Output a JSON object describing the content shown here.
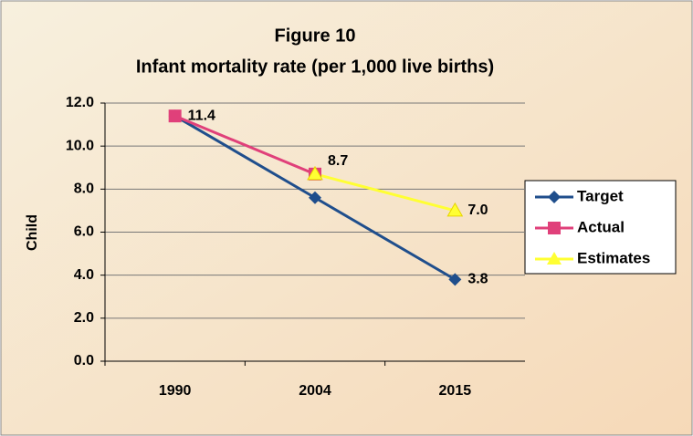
{
  "chart_data": {
    "type": "line",
    "title": "Figure 10",
    "subtitle": "Infant mortality rate (per 1,000 live births)",
    "y_label": "Child",
    "categories": [
      "1990",
      "2004",
      "2015"
    ],
    "series": [
      {
        "name": "Target",
        "color": "#1f4e8c",
        "marker": "diamond",
        "values": [
          11.4,
          7.6,
          3.8
        ],
        "value_labels": [
          null,
          null,
          "3.8"
        ]
      },
      {
        "name": "Actual",
        "color": "#e0407a",
        "marker": "square",
        "values": [
          11.4,
          8.7,
          null
        ],
        "value_labels": [
          "11.4",
          "8.7",
          null
        ]
      },
      {
        "name": "Estimates",
        "color": "#ffff33",
        "marker": "triangle",
        "values": [
          null,
          8.7,
          7.0
        ],
        "value_labels": [
          null,
          null,
          "7.0"
        ]
      }
    ],
    "ylim": [
      0,
      12
    ],
    "yticks": [
      {
        "value": 0,
        "label": "0.0"
      },
      {
        "value": 2,
        "label": "2.0"
      },
      {
        "value": 4,
        "label": "4.0"
      },
      {
        "value": 6,
        "label": "6.0"
      },
      {
        "value": 8,
        "label": "8.0"
      },
      {
        "value": 10,
        "label": "10.0"
      },
      {
        "value": 12,
        "label": "12.0"
      }
    ],
    "grid": true,
    "legend": "right"
  }
}
